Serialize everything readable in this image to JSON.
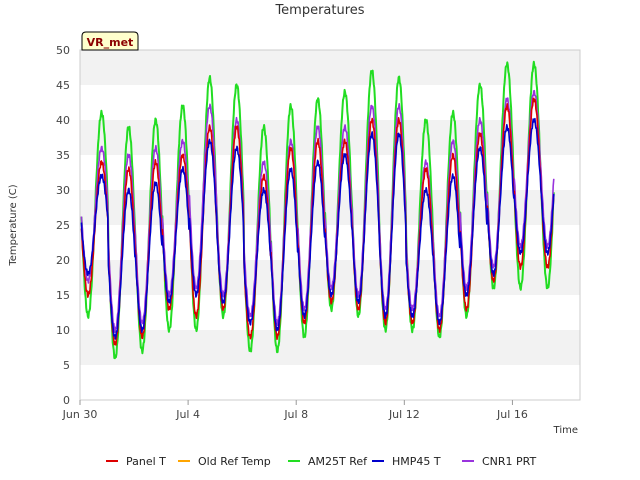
{
  "chart_data": {
    "type": "line",
    "title": "Temperatures",
    "xlabel": "Time",
    "ylabel": "Temperature (C)",
    "badge": "VR_met",
    "ylim": [
      0,
      50
    ],
    "yticks": [
      0,
      5,
      10,
      15,
      20,
      25,
      30,
      35,
      40,
      45,
      50
    ],
    "xlim": [
      0,
      18.5
    ],
    "xticks": [
      {
        "value": 0,
        "label": "Jun 30"
      },
      {
        "value": 4,
        "label": "Jul 4"
      },
      {
        "value": 8,
        "label": "Jul 8"
      },
      {
        "value": 12,
        "label": "Jul 12"
      },
      {
        "value": 16,
        "label": "Jul 16"
      }
    ],
    "grid": "horizontal bands",
    "legend_position": "bottom",
    "series": [
      {
        "name": "Panel T",
        "color": "#dd0000",
        "lows": [
          15,
          8,
          9,
          13,
          12,
          13,
          9,
          9,
          11,
          14,
          13,
          11,
          11,
          10,
          13,
          17,
          19
        ],
        "highs": [
          34,
          33,
          34,
          35,
          39,
          39,
          32,
          36,
          37,
          37,
          40,
          40,
          33,
          35,
          38,
          42,
          43
        ]
      },
      {
        "name": "Old Ref Temp",
        "color": "#ffa500",
        "lows": [],
        "highs": []
      },
      {
        "name": "AM25T Ref",
        "color": "#22dd22",
        "lows": [
          12,
          6,
          7,
          10,
          10,
          12,
          7,
          7,
          9,
          13,
          12,
          10,
          10,
          9,
          12,
          16,
          16
        ],
        "highs": [
          41,
          39,
          40,
          42,
          46,
          45,
          39,
          42,
          43,
          44,
          47,
          46,
          40,
          41,
          45,
          48,
          48
        ]
      },
      {
        "name": "HMP45 T",
        "color": "#0000cc",
        "lows": [
          18,
          9,
          10,
          14,
          15,
          14,
          11,
          10,
          12,
          15,
          14,
          12,
          12,
          11,
          15,
          18,
          21
        ],
        "highs": [
          32,
          30,
          31,
          33,
          37,
          36,
          30,
          33,
          34,
          35,
          38,
          38,
          30,
          32,
          36,
          39,
          40
        ]
      },
      {
        "name": "CNR1 PRT",
        "color": "#9933dd",
        "lows": [
          17,
          10,
          11,
          15,
          16,
          15,
          12,
          11,
          13,
          16,
          15,
          13,
          13,
          12,
          16,
          19,
          22
        ],
        "highs": [
          36,
          35,
          36,
          37,
          42,
          40,
          34,
          37,
          39,
          39,
          42,
          42,
          34,
          37,
          40,
          43,
          44
        ]
      }
    ]
  }
}
